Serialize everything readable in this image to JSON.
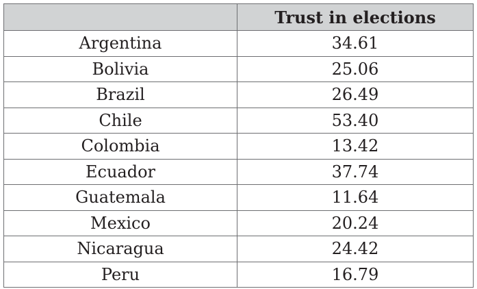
{
  "table": {
    "headers": [
      "",
      "Trust in elections"
    ],
    "rows": [
      {
        "country": "Argentina",
        "value": "34.61"
      },
      {
        "country": "Bolivia",
        "value": "25.06"
      },
      {
        "country": "Brazil",
        "value": "26.49"
      },
      {
        "country": "Chile",
        "value": "53.40"
      },
      {
        "country": "Colombia",
        "value": "13.42"
      },
      {
        "country": "Ecuador",
        "value": "37.74"
      },
      {
        "country": "Guatemala",
        "value": "11.64"
      },
      {
        "country": "Mexico",
        "value": "20.24"
      },
      {
        "country": "Nicaragua",
        "value": "24.42"
      },
      {
        "country": "Peru",
        "value": "16.79"
      }
    ]
  }
}
